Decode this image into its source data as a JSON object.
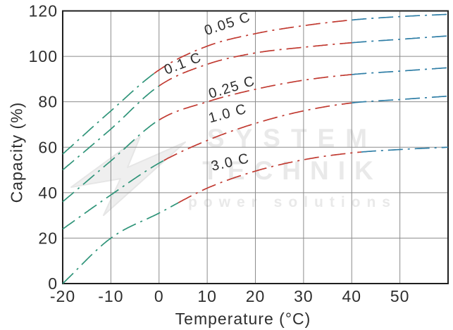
{
  "watermark": {
    "line1": "SYSTEM",
    "line2": "TECHNIK",
    "line3": "power solutions"
  },
  "chart_data": {
    "type": "line",
    "title": "",
    "xlabel": "Temperature (°C)",
    "ylabel": "Capacity (%)",
    "x_range": [
      -20,
      60
    ],
    "y_range": [
      0,
      120
    ],
    "x_ticks": [
      -20,
      -10,
      0,
      10,
      20,
      30,
      40,
      50
    ],
    "y_ticks": [
      0,
      20,
      40,
      60,
      80,
      100,
      120
    ],
    "grid": true,
    "line_style": "dash-dot",
    "x": [
      -20,
      -10,
      0,
      10,
      20,
      30,
      40,
      50,
      60
    ],
    "series": [
      {
        "name": "0.05 C",
        "values": [
          57,
          76,
          94,
          104.5,
          110,
          113.5,
          116,
          117.5,
          118.5
        ],
        "color_breaks": [
          -1,
          40
        ],
        "label_pos": {
          "t": 14.5,
          "cap": 112.5,
          "angle": -18
        }
      },
      {
        "name": "0.1 C",
        "values": [
          50,
          68,
          87,
          96.5,
          101.5,
          104,
          106,
          107.5,
          109
        ],
        "color_breaks": [
          0,
          40
        ],
        "label_pos": {
          "t": 5.3,
          "cap": 95,
          "angle": -21
        }
      },
      {
        "name": "0.25 C",
        "values": [
          36,
          54,
          72,
          80,
          85.5,
          89.5,
          92,
          93.5,
          95
        ],
        "color_breaks": [
          0,
          40
        ],
        "label_pos": {
          "t": 15.4,
          "cap": 84.5,
          "angle": -17
        }
      },
      {
        "name": "1.0 C",
        "values": [
          24,
          39,
          53,
          63,
          70.5,
          76,
          79.5,
          81,
          82.5
        ],
        "color_breaks": [
          1,
          40
        ],
        "label_pos": {
          "t": 14.5,
          "cap": 73,
          "angle": -15
        }
      },
      {
        "name": "3.0 C",
        "values": [
          0,
          20,
          31,
          42,
          49.5,
          54.5,
          57.5,
          59,
          60
        ],
        "color_breaks": [
          4,
          42
        ],
        "label_pos": {
          "t": 15,
          "cap": 51.5,
          "angle": -13
        }
      }
    ],
    "zone_colors": {
      "cold": "#2f9479",
      "mid": "#c13a31",
      "hot": "#2f7ea6"
    },
    "grid_color": "#8c8c8c",
    "border_color": "#1f1f1f",
    "text_color": "#2e2e2e",
    "watermark_color": "#e9e9e9",
    "legend_position": "none"
  }
}
